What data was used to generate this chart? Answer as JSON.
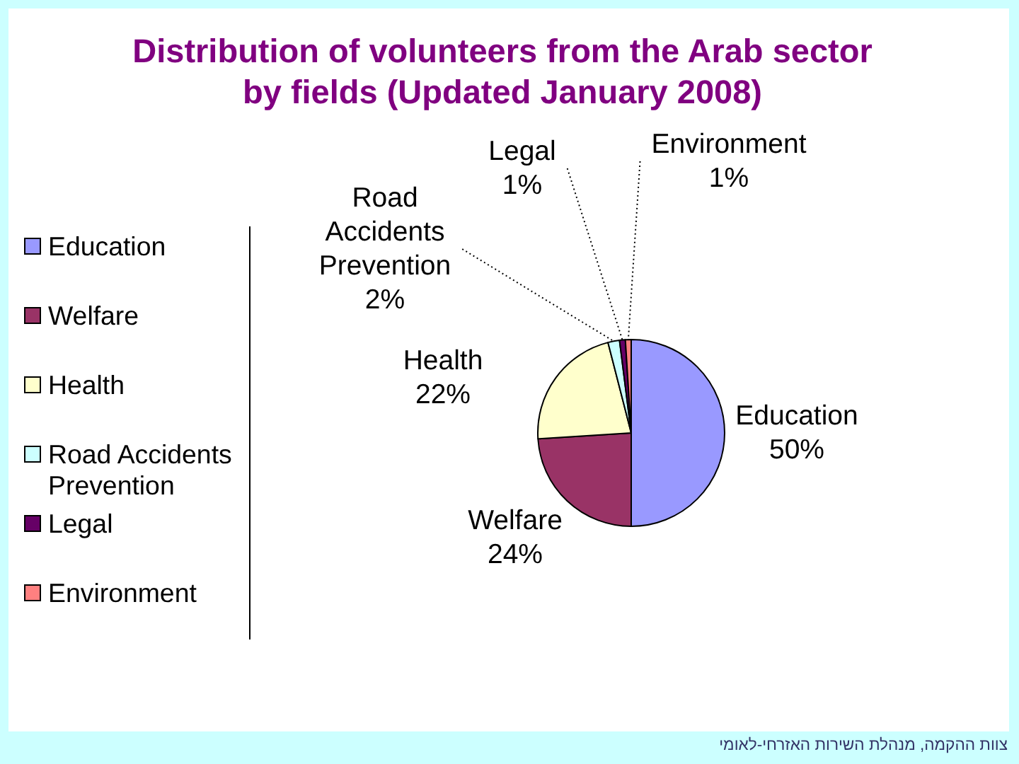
{
  "chart_data": {
    "type": "pie",
    "title": "Distribution of volunteers from the Arab sector by fields (Updated January 2008)",
    "categories": [
      "Education",
      "Welfare",
      "Health",
      "Road Accidents Prevention",
      "Legal",
      "Environment"
    ],
    "values": [
      50,
      24,
      22,
      2,
      1,
      1
    ],
    "colors": [
      "#9999ff",
      "#993366",
      "#ffffcc",
      "#ccffff",
      "#660066",
      "#ff8080"
    ],
    "value_labels": [
      "50%",
      "24%",
      "22%",
      "2%",
      "1%",
      "1%"
    ],
    "legend": "left",
    "annotations": [
      "צוות ההקמה, מנהלת השירות האזרחי-לאומי"
    ]
  }
}
